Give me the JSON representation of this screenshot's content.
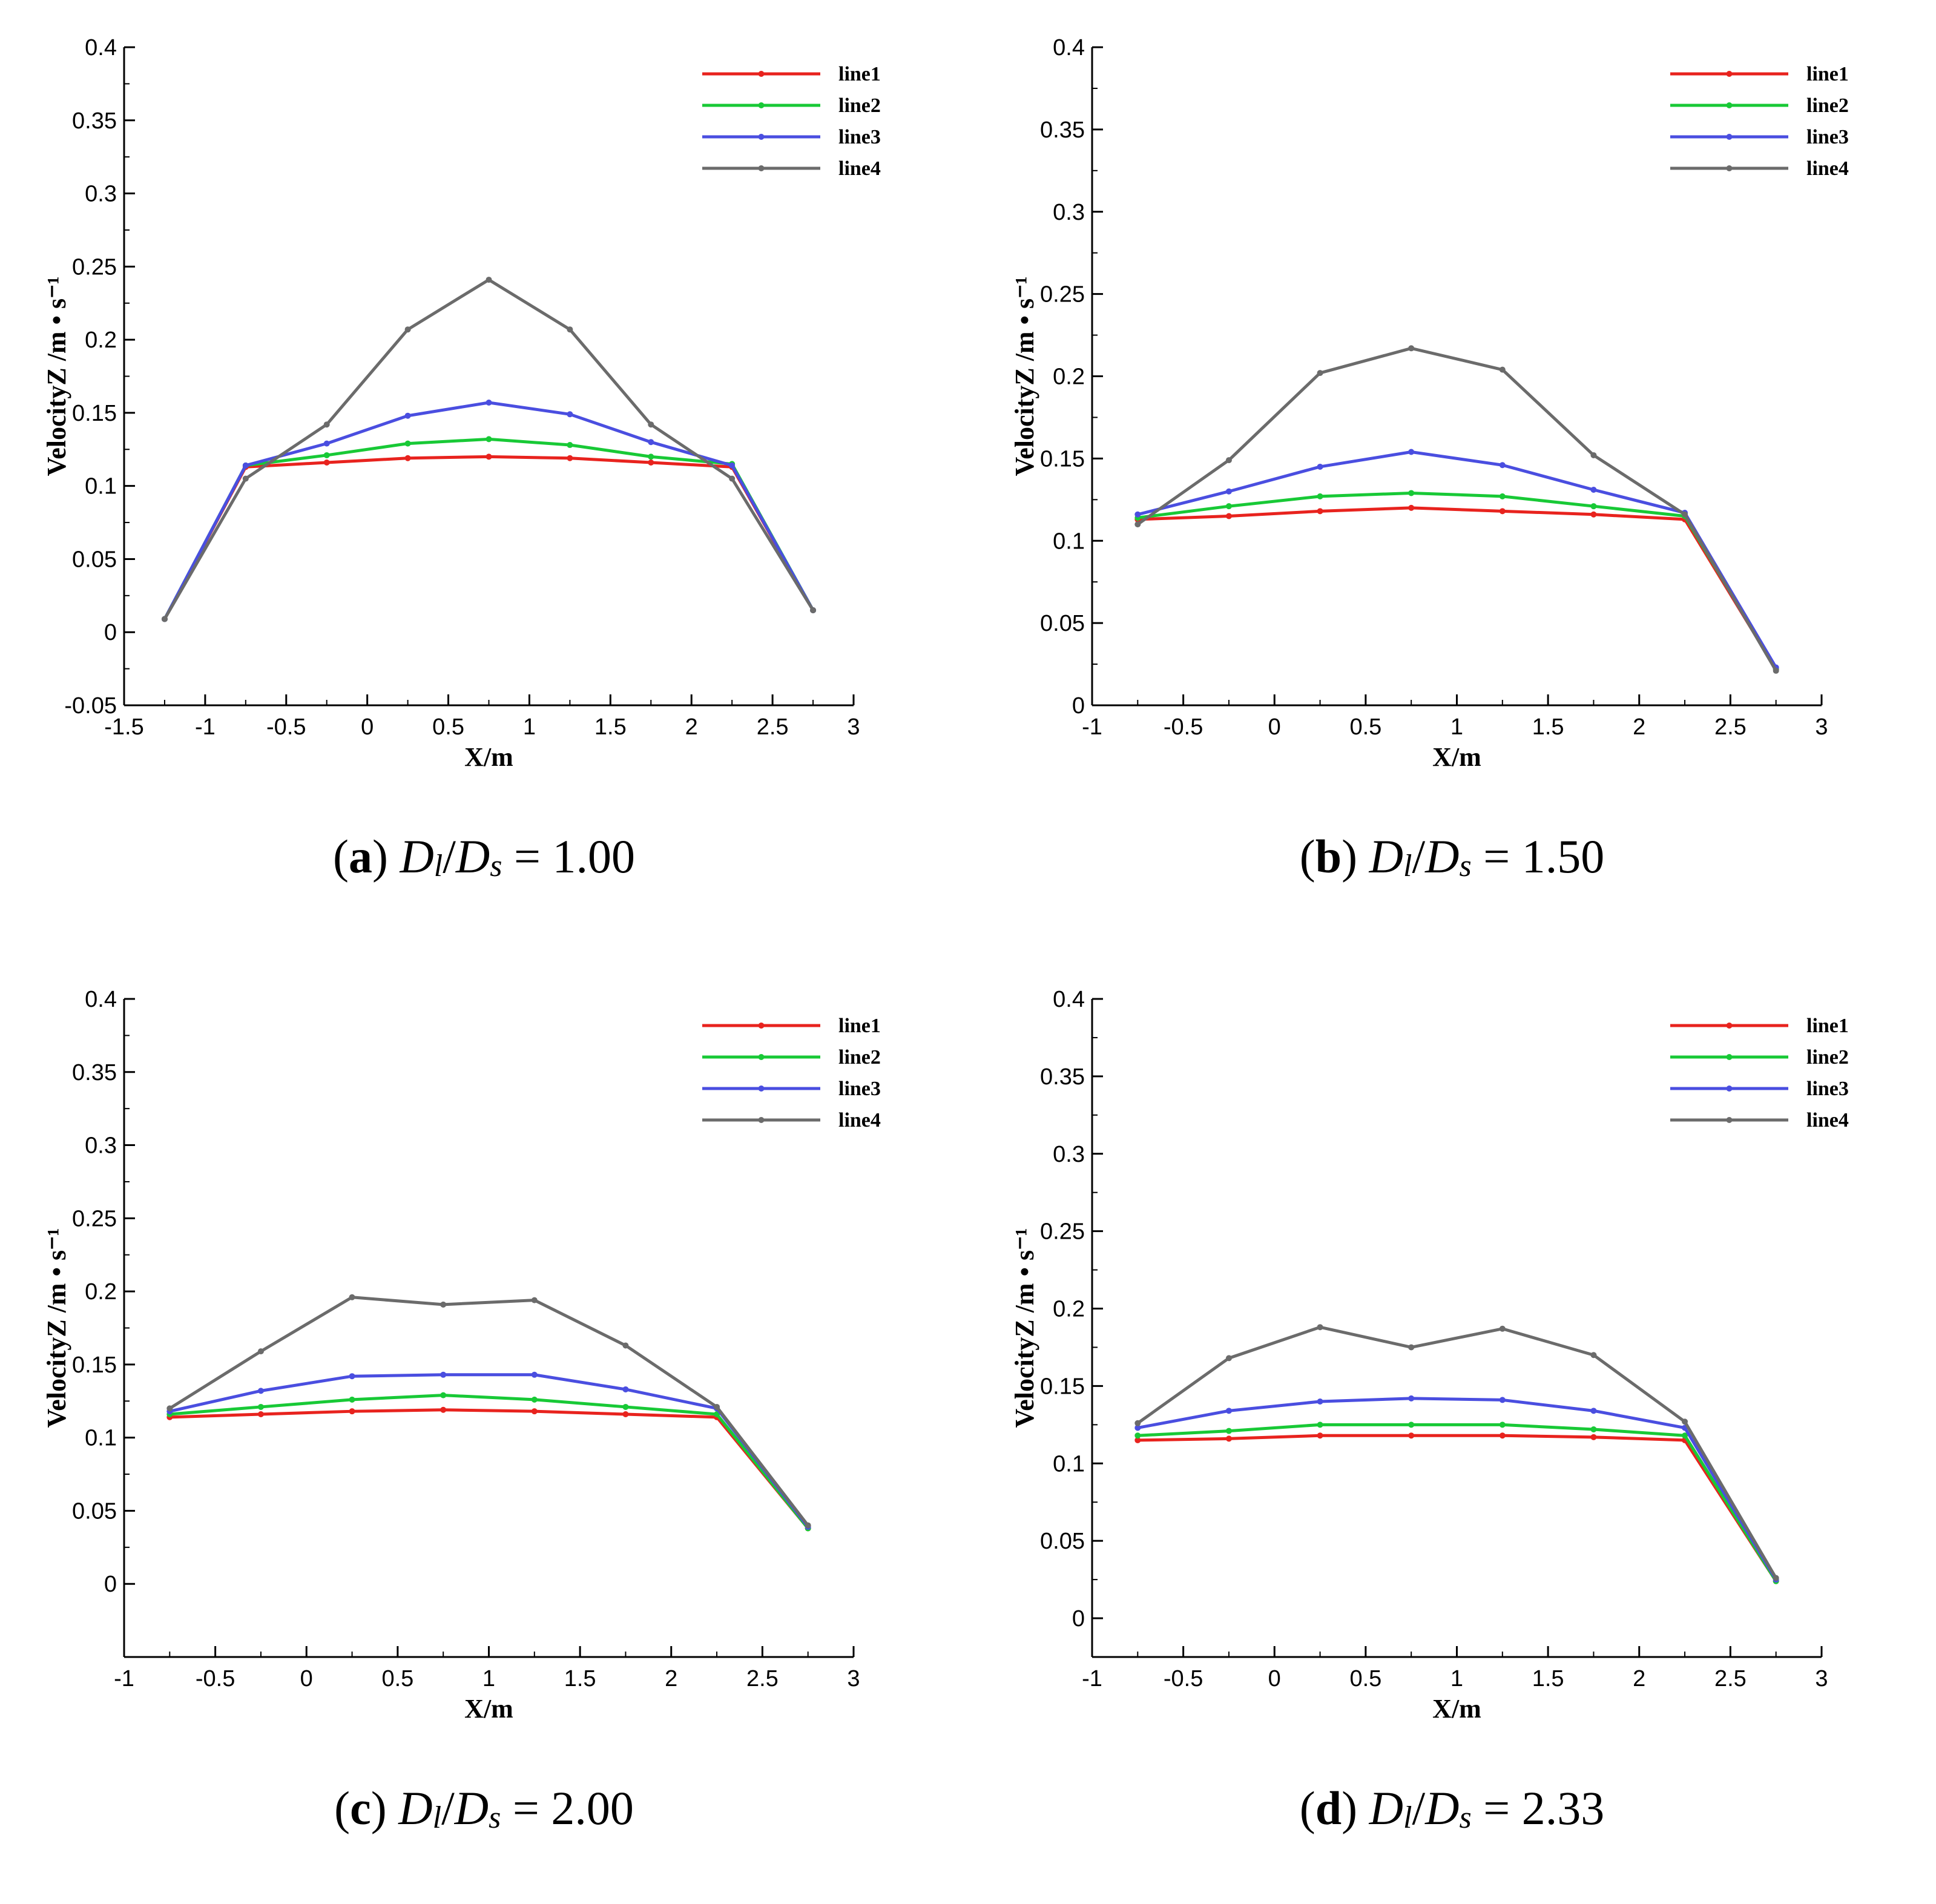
{
  "figure": {
    "colors": {
      "line1": "#e8231e",
      "line2": "#18c936",
      "line3": "#4a4ee0",
      "line4": "#6b6b6b"
    }
  },
  "chart_data": [
    {
      "type": "line",
      "id": "a",
      "caption": {
        "tag": "a",
        "ratio_label": "1.00",
        "num": "D",
        "num_sub": "l",
        "den": "D",
        "den_sub": "s"
      },
      "xlabel": "X/m",
      "ylabel": "VelocityZ /m • s⁻¹",
      "xlim": [
        -1.5,
        3
      ],
      "ylim": [
        -0.05,
        0.4
      ],
      "xticks": [
        -1.5,
        -1,
        -0.5,
        0,
        0.5,
        1,
        1.5,
        2,
        2.5,
        3
      ],
      "xtick_labels": [
        "-1.5",
        "-1",
        "-0.5",
        "0",
        "0.5",
        "1",
        "1.5",
        "2",
        "2.5",
        "3"
      ],
      "yticks": [
        -0.05,
        0,
        0.05,
        0.1,
        0.15,
        0.2,
        0.25,
        0.3,
        0.35,
        0.4
      ],
      "ytick_labels": [
        "-0.05",
        "0",
        "0.05",
        "0.1",
        "0.15",
        "0.2",
        "0.25",
        "0.3",
        "0.35",
        "0.4"
      ],
      "legend": "top-right",
      "series": [
        {
          "name": "line1",
          "x": [
            -1.25,
            -0.75,
            -0.25,
            0.25,
            0.75,
            1.25,
            1.75,
            2.25,
            2.75
          ],
          "values": [
            0.009,
            0.113,
            0.116,
            0.119,
            0.12,
            0.119,
            0.116,
            0.113,
            0.015
          ]
        },
        {
          "name": "line2",
          "x": [
            -1.25,
            -0.75,
            -0.25,
            0.25,
            0.75,
            1.25,
            1.75,
            2.25,
            2.75
          ],
          "values": [
            0.009,
            0.114,
            0.121,
            0.129,
            0.132,
            0.128,
            0.12,
            0.115,
            0.015
          ]
        },
        {
          "name": "line3",
          "x": [
            -1.25,
            -0.75,
            -0.25,
            0.25,
            0.75,
            1.25,
            1.75,
            2.25,
            2.75
          ],
          "values": [
            0.009,
            0.114,
            0.129,
            0.148,
            0.157,
            0.149,
            0.13,
            0.114,
            0.015
          ]
        },
        {
          "name": "line4",
          "x": [
            -1.25,
            -0.75,
            -0.25,
            0.25,
            0.75,
            1.25,
            1.75,
            2.25,
            2.75
          ],
          "values": [
            0.009,
            0.105,
            0.142,
            0.207,
            0.241,
            0.207,
            0.142,
            0.105,
            0.015
          ]
        }
      ]
    },
    {
      "type": "line",
      "id": "b",
      "caption": {
        "tag": "b",
        "ratio_label": "1.50",
        "num": "D",
        "num_sub": "l",
        "den": "D",
        "den_sub": "s"
      },
      "xlabel": "X/m",
      "ylabel": "VelocityZ /m • s⁻¹",
      "xlim": [
        -1,
        3
      ],
      "ylim": [
        0,
        0.4
      ],
      "xticks": [
        -1,
        -0.5,
        0,
        0.5,
        1,
        1.5,
        2,
        2.5,
        3
      ],
      "xtick_labels": [
        "-1",
        "-0.5",
        "0",
        "0.5",
        "1",
        "1.5",
        "2",
        "2.5",
        "3"
      ],
      "yticks": [
        0,
        0.05,
        0.1,
        0.15,
        0.2,
        0.25,
        0.3,
        0.35,
        0.4
      ],
      "ytick_labels": [
        "0",
        "0.05",
        "0.1",
        "0.15",
        "0.2",
        "0.25",
        "0.3",
        "0.35",
        "0.4"
      ],
      "legend": "top-right",
      "series": [
        {
          "name": "line1",
          "x": [
            -0.75,
            -0.25,
            0.25,
            0.75,
            1.25,
            1.75,
            2.25,
            2.75
          ],
          "values": [
            0.113,
            0.115,
            0.118,
            0.12,
            0.118,
            0.116,
            0.113,
            0.022
          ]
        },
        {
          "name": "line2",
          "x": [
            -0.75,
            -0.25,
            0.25,
            0.75,
            1.25,
            1.75,
            2.25,
            2.75
          ],
          "values": [
            0.114,
            0.121,
            0.127,
            0.129,
            0.127,
            0.121,
            0.115,
            0.022
          ]
        },
        {
          "name": "line3",
          "x": [
            -0.75,
            -0.25,
            0.25,
            0.75,
            1.25,
            1.75,
            2.25,
            2.75
          ],
          "values": [
            0.116,
            0.13,
            0.145,
            0.154,
            0.146,
            0.131,
            0.117,
            0.023
          ]
        },
        {
          "name": "line4",
          "x": [
            -0.75,
            -0.25,
            0.25,
            0.75,
            1.25,
            1.75,
            2.25,
            2.75
          ],
          "values": [
            0.11,
            0.149,
            0.202,
            0.217,
            0.204,
            0.152,
            0.116,
            0.021
          ]
        }
      ]
    },
    {
      "type": "line",
      "id": "c",
      "caption": {
        "tag": "c",
        "ratio_label": "2.00",
        "num": "D",
        "num_sub": "l",
        "den": "D",
        "den_sub": "s"
      },
      "xlabel": "X/m",
      "ylabel": "VelocityZ /m • s⁻¹",
      "xlim": [
        -1,
        3
      ],
      "ylim": [
        -0.05,
        0.4
      ],
      "xticks": [
        -1,
        -0.5,
        0,
        0.5,
        1,
        1.5,
        2,
        2.5,
        3
      ],
      "xtick_labels": [
        "-1",
        "-0.5",
        "0",
        "0.5",
        "1",
        "1.5",
        "2",
        "2.5",
        "3"
      ],
      "yticks": [
        0,
        0.05,
        0.1,
        0.15,
        0.2,
        0.25,
        0.3,
        0.35,
        0.4
      ],
      "ytick_labels": [
        "0",
        "0.05",
        "0.1",
        "0.15",
        "0.2",
        "0.25",
        "0.3",
        "0.35",
        "0.4"
      ],
      "legend": "top-right",
      "series": [
        {
          "name": "line1",
          "x": [
            -0.75,
            -0.25,
            0.25,
            0.75,
            1.25,
            1.75,
            2.25,
            2.75
          ],
          "values": [
            0.114,
            0.116,
            0.118,
            0.119,
            0.118,
            0.116,
            0.114,
            0.038
          ]
        },
        {
          "name": "line2",
          "x": [
            -0.75,
            -0.25,
            0.25,
            0.75,
            1.25,
            1.75,
            2.25,
            2.75
          ],
          "values": [
            0.116,
            0.121,
            0.126,
            0.129,
            0.126,
            0.121,
            0.116,
            0.038
          ]
        },
        {
          "name": "line3",
          "x": [
            -0.75,
            -0.25,
            0.25,
            0.75,
            1.25,
            1.75,
            2.25,
            2.75
          ],
          "values": [
            0.118,
            0.132,
            0.142,
            0.143,
            0.143,
            0.133,
            0.12,
            0.039
          ]
        },
        {
          "name": "line4",
          "x": [
            -0.75,
            -0.25,
            0.25,
            0.75,
            1.25,
            1.75,
            2.25,
            2.75
          ],
          "values": [
            0.12,
            0.159,
            0.196,
            0.191,
            0.194,
            0.163,
            0.121,
            0.04
          ]
        }
      ]
    },
    {
      "type": "line",
      "id": "d",
      "caption": {
        "tag": "d",
        "ratio_label": "2.33",
        "num": "D",
        "num_sub": "l",
        "den": "D",
        "den_sub": "s"
      },
      "xlabel": "X/m",
      "ylabel": "VelocityZ /m • s⁻¹",
      "xlim": [
        -1,
        3
      ],
      "ylim": [
        -0.025,
        0.4
      ],
      "xticks": [
        -1,
        -0.5,
        0,
        0.5,
        1,
        1.5,
        2,
        2.5,
        3
      ],
      "xtick_labels": [
        "-1",
        "-0.5",
        "0",
        "0.5",
        "1",
        "1.5",
        "2",
        "2.5",
        "3"
      ],
      "yticks": [
        0,
        0.05,
        0.1,
        0.15,
        0.2,
        0.25,
        0.3,
        0.35,
        0.4
      ],
      "ytick_labels": [
        "0",
        "0.05",
        "0.1",
        "0.15",
        "0.2",
        "0.25",
        "0.3",
        "0.35",
        "0.4"
      ],
      "legend": "top-right",
      "series": [
        {
          "name": "line1",
          "x": [
            -0.75,
            -0.25,
            0.25,
            0.75,
            1.25,
            1.75,
            2.25,
            2.75
          ],
          "values": [
            0.115,
            0.116,
            0.118,
            0.118,
            0.118,
            0.117,
            0.115,
            0.024
          ]
        },
        {
          "name": "line2",
          "x": [
            -0.75,
            -0.25,
            0.25,
            0.75,
            1.25,
            1.75,
            2.25,
            2.75
          ],
          "values": [
            0.118,
            0.121,
            0.125,
            0.125,
            0.125,
            0.122,
            0.118,
            0.024
          ]
        },
        {
          "name": "line3",
          "x": [
            -0.75,
            -0.25,
            0.25,
            0.75,
            1.25,
            1.75,
            2.25,
            2.75
          ],
          "values": [
            0.123,
            0.134,
            0.14,
            0.142,
            0.141,
            0.134,
            0.123,
            0.025
          ]
        },
        {
          "name": "line4",
          "x": [
            -0.75,
            -0.25,
            0.25,
            0.75,
            1.25,
            1.75,
            2.25,
            2.75
          ],
          "values": [
            0.126,
            0.168,
            0.188,
            0.175,
            0.187,
            0.17,
            0.127,
            0.026
          ]
        }
      ]
    }
  ]
}
